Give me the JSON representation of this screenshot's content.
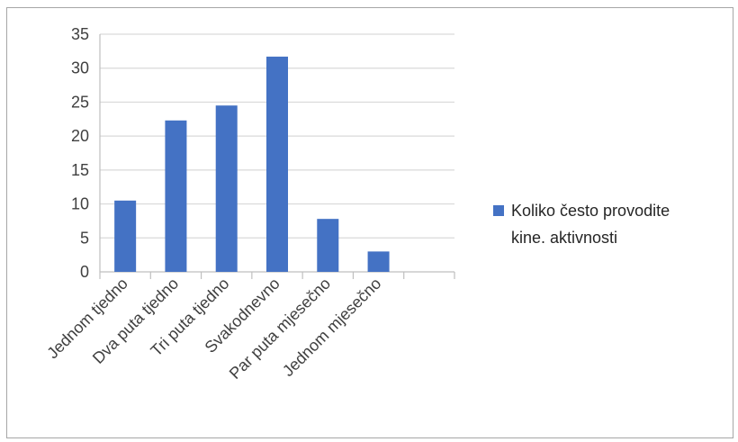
{
  "chart_data": {
    "type": "bar",
    "categories": [
      "Jednom tjedno",
      "Dva puta tjedno",
      "Tri puta tjedno",
      "Svakodnevno",
      "Par puta mjesečno",
      "Jednom mjesečno",
      ""
    ],
    "series": [
      {
        "name": "Koliko često provodite kine. aktivnosti",
        "values": [
          10.5,
          22.3,
          24.5,
          31.7,
          7.8,
          3.0,
          null
        ],
        "color": "#4472c4"
      }
    ],
    "yticks": [
      0,
      5,
      10,
      15,
      20,
      25,
      30,
      35
    ],
    "ylim": [
      0,
      35
    ],
    "grid": true,
    "legend_position": "right",
    "legend_lines": [
      "Koliko često provodite",
      "kine. aktivnosti"
    ]
  }
}
